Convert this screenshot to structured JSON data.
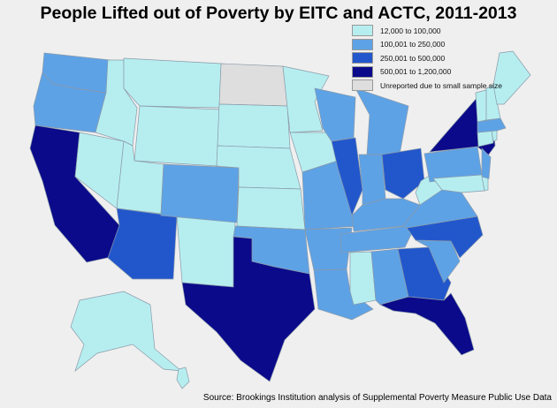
{
  "title": "People Lifted out of Poverty by EITC and ACTC, 2011-2013",
  "legend": [
    {
      "label": "12,000 to 100,000",
      "color": "#b6eef0"
    },
    {
      "label": "100,001 to 250,000",
      "color": "#5ea2e6"
    },
    {
      "label": "250,001 to 500,000",
      "color": "#2257cc"
    },
    {
      "label": "500,001 to 1,200,000",
      "color": "#0a0a8a"
    },
    {
      "label": "Unreported due to small sample size",
      "color": "#dedede"
    }
  ],
  "source": "Source: Brookings Institution analysis of Supplemental Poverty Measure Public Use Data",
  "state_categories": {
    "WA": 1,
    "OR": 1,
    "CA": 3,
    "NV": 0,
    "ID": 0,
    "MT": 0,
    "WY": 0,
    "UT": 0,
    "AZ": 2,
    "NM": 0,
    "CO": 1,
    "ND": 4,
    "SD": 0,
    "NE": 0,
    "KS": 0,
    "OK": 1,
    "TX": 3,
    "MN": 0,
    "IA": 0,
    "MO": 1,
    "AR": 1,
    "LA": 1,
    "WI": 1,
    "IL": 2,
    "MI": 1,
    "IN": 1,
    "OH": 2,
    "KY": 1,
    "TN": 1,
    "MS": 0,
    "AL": 1,
    "GA": 2,
    "FL": 3,
    "SC": 1,
    "NC": 2,
    "VA": 1,
    "WV": 0,
    "PA": 1,
    "NY": 3,
    "NJ": 1,
    "MD": 0,
    "DE": 0,
    "CT": 0,
    "RI": 0,
    "MA": 1,
    "VT": 0,
    "NH": 0,
    "ME": 0,
    "AK": 0,
    "HI": 0
  }
}
